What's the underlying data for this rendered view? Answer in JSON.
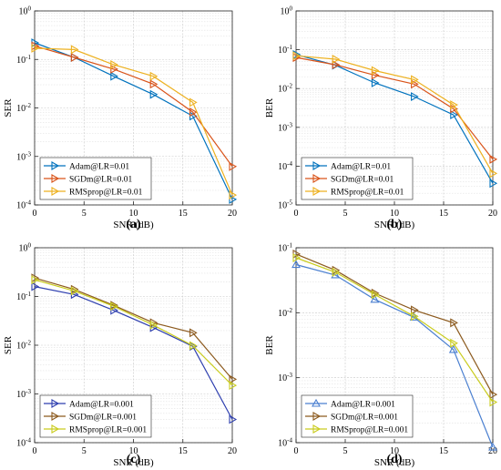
{
  "chart_data": [
    {
      "panel_label": "(a)",
      "type": "line",
      "xlabel": "SNR (dB)",
      "ylabel": "SER",
      "yscale": "log",
      "xlim": [
        0,
        20
      ],
      "ylim_exp": [
        -4,
        0
      ],
      "xticks": [
        "0",
        "5",
        "10",
        "15",
        "20"
      ],
      "grid": true,
      "legend_position": "bottom-left",
      "x": [
        0,
        4,
        8,
        12,
        16,
        20
      ],
      "series": [
        {
          "name": "Adam@LR=0.01",
          "color": "#0072BD",
          "marker": "triangle-right",
          "values": [
            0.22,
            0.11,
            0.045,
            0.019,
            0.0068,
            0.00013
          ]
        },
        {
          "name": "SGDm@LR=0.01",
          "color": "#D95319",
          "marker": "triangle-right",
          "values": [
            0.19,
            0.11,
            0.063,
            0.031,
            0.0082,
            0.00062
          ]
        },
        {
          "name": "RMSprop@LR=0.01",
          "color": "#EDB120",
          "marker": "triangle-right",
          "values": [
            0.17,
            0.16,
            0.078,
            0.045,
            0.013,
            0.00016
          ]
        }
      ]
    },
    {
      "panel_label": "(b)",
      "type": "line",
      "xlabel": "SNR (dB)",
      "ylabel": "BER",
      "yscale": "log",
      "xlim": [
        0,
        20
      ],
      "ylim_exp": [
        -5,
        0
      ],
      "xticks": [
        "0",
        "5",
        "10",
        "15",
        "20"
      ],
      "grid": true,
      "legend_position": "bottom-left",
      "x": [
        0,
        4,
        8,
        12,
        16,
        20
      ],
      "series": [
        {
          "name": "Adam@LR=0.01",
          "color": "#0072BD",
          "marker": "triangle-right",
          "values": [
            0.075,
            0.04,
            0.014,
            0.0062,
            0.0021,
            3.6e-05
          ]
        },
        {
          "name": "SGDm@LR=0.01",
          "color": "#D95319",
          "marker": "triangle-right",
          "values": [
            0.063,
            0.041,
            0.022,
            0.013,
            0.003,
            0.00015
          ]
        },
        {
          "name": "RMSprop@LR=0.01",
          "color": "#EDB120",
          "marker": "triangle-right",
          "values": [
            0.07,
            0.057,
            0.029,
            0.017,
            0.0038,
            6.5e-05
          ]
        }
      ]
    },
    {
      "panel_label": "(c)",
      "type": "line",
      "xlabel": "SNR (dB)",
      "ylabel": "SER",
      "yscale": "log",
      "xlim": [
        0,
        20
      ],
      "ylim_exp": [
        -4,
        0
      ],
      "xticks": [
        "0",
        "5",
        "10",
        "15",
        "20"
      ],
      "grid": true,
      "legend_position": "bottom-left",
      "x": [
        0,
        4,
        8,
        12,
        16,
        20
      ],
      "series": [
        {
          "name": "Adam@LR=0.001",
          "color": "#2E3FAF",
          "marker": "triangle-right",
          "values": [
            0.16,
            0.11,
            0.052,
            0.023,
            0.0095,
            0.0003
          ]
        },
        {
          "name": "SGDm@LR=0.001",
          "color": "#8C5A1E",
          "marker": "triangle-right",
          "values": [
            0.24,
            0.14,
            0.066,
            0.029,
            0.018,
            0.002
          ]
        },
        {
          "name": "RMSprop@LR=0.001",
          "color": "#C9CC1E",
          "marker": "triangle-right",
          "values": [
            0.22,
            0.13,
            0.063,
            0.026,
            0.0098,
            0.0015
          ]
        }
      ]
    },
    {
      "panel_label": "(d)",
      "type": "line",
      "xlabel": "SNR (dB)",
      "ylabel": "BER",
      "yscale": "log",
      "xlim": [
        0,
        20
      ],
      "ylim_exp": [
        -4,
        -1
      ],
      "xticks": [
        "0",
        "5",
        "10",
        "15",
        "20"
      ],
      "grid": true,
      "legend_position": "bottom-left",
      "x": [
        0,
        4,
        8,
        12,
        16,
        20
      ],
      "series": [
        {
          "name": "Adam@LR=0.001",
          "color": "#4A7FD0",
          "marker": "triangle-up",
          "values": [
            0.055,
            0.038,
            0.016,
            0.0085,
            0.0027,
            8.5e-05
          ]
        },
        {
          "name": "SGDm@LR=0.001",
          "color": "#8C5A1E",
          "marker": "triangle-right",
          "values": [
            0.08,
            0.045,
            0.02,
            0.011,
            0.007,
            0.00055
          ]
        },
        {
          "name": "RMSprop@LR=0.001",
          "color": "#C9CC1E",
          "marker": "triangle-right",
          "values": [
            0.07,
            0.042,
            0.019,
            0.0088,
            0.0034,
            0.00042
          ]
        }
      ]
    }
  ]
}
